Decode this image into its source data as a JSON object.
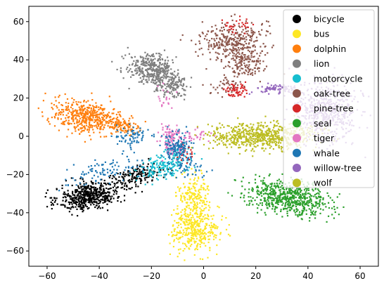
{
  "chart_data": {
    "type": "scatter",
    "title": "",
    "xlabel": "",
    "ylabel": "",
    "xlim": [
      -67,
      67
    ],
    "ylim": [
      -68,
      68
    ],
    "xticks": [
      -60,
      -40,
      -20,
      0,
      20,
      40,
      60
    ],
    "yticks": [
      -60,
      -40,
      -20,
      0,
      20,
      40,
      60
    ],
    "grid": false,
    "legend_position": "upper right",
    "series": [
      {
        "name": "bicycle",
        "color": "#000000",
        "clusters": [
          {
            "cx": -44,
            "cy": -31,
            "sx": 6,
            "sy": 3.5,
            "angle_deg": 15,
            "n": 520
          },
          {
            "cx": -26,
            "cy": -21,
            "sx": 6,
            "sy": 2.5,
            "angle_deg": 25,
            "n": 160
          }
        ]
      },
      {
        "name": "bus",
        "color": "#fde725",
        "clusters": [
          {
            "cx": -3,
            "cy": -48,
            "sx": 4.5,
            "sy": 6,
            "angle_deg": 0,
            "n": 400
          },
          {
            "cx": -4,
            "cy": -30,
            "sx": 3,
            "sy": 5,
            "angle_deg": 0,
            "n": 160
          }
        ]
      },
      {
        "name": "dolphin",
        "color": "#ff7f0e",
        "clusters": [
          {
            "cx": -45,
            "cy": 10,
            "sx": 7,
            "sy": 4,
            "angle_deg": -20,
            "n": 460
          },
          {
            "cx": -32,
            "cy": 6,
            "sx": 4,
            "sy": 2.5,
            "angle_deg": -20,
            "n": 100
          }
        ]
      },
      {
        "name": "lion",
        "color": "#7f7f7f",
        "clusters": [
          {
            "cx": -20,
            "cy": 35,
            "sx": 5,
            "sy": 4,
            "angle_deg": -30,
            "n": 380
          },
          {
            "cx": -12,
            "cy": 26,
            "sx": 3.5,
            "sy": 3,
            "angle_deg": -45,
            "n": 140
          }
        ]
      },
      {
        "name": "motorcycle",
        "color": "#17becf",
        "clusters": [
          {
            "cx": -16,
            "cy": -16,
            "sx": 5,
            "sy": 3,
            "angle_deg": 20,
            "n": 160
          },
          {
            "cx": -10,
            "cy": -8,
            "sx": 2.5,
            "sy": 3,
            "angle_deg": 0,
            "n": 40
          }
        ]
      },
      {
        "name": "oak-tree",
        "color": "#8c564b",
        "clusters": [
          {
            "cx": 11,
            "cy": 50,
            "sx": 6,
            "sy": 5,
            "angle_deg": 0,
            "n": 320
          },
          {
            "cx": 16,
            "cy": 38,
            "sx": 4,
            "sy": 4,
            "angle_deg": 0,
            "n": 140
          },
          {
            "cx": 8,
            "cy": 26,
            "sx": 3,
            "sy": 2.5,
            "angle_deg": 0,
            "n": 40
          }
        ]
      },
      {
        "name": "pine-tree",
        "color": "#d62728",
        "clusters": [
          {
            "cx": 12,
            "cy": 24,
            "sx": 2,
            "sy": 2,
            "angle_deg": 0,
            "n": 60
          },
          {
            "cx": 13,
            "cy": 58,
            "sx": 3,
            "sy": 2,
            "angle_deg": 0,
            "n": 30
          },
          {
            "cx": -7,
            "cy": -8,
            "sx": 1.8,
            "sy": 2.5,
            "angle_deg": 0,
            "n": 30
          }
        ]
      },
      {
        "name": "seal",
        "color": "#2ca02c",
        "clusters": [
          {
            "cx": 33,
            "cy": -32,
            "sx": 8,
            "sy": 4,
            "angle_deg": -15,
            "n": 640
          }
        ]
      },
      {
        "name": "tiger",
        "color": "#e377c2",
        "clusters": [
          {
            "cx": -12,
            "cy": -2,
            "sx": 2.5,
            "sy": 4,
            "angle_deg": 0,
            "n": 100
          },
          {
            "cx": -4,
            "cy": 0,
            "sx": 4,
            "sy": 1.5,
            "angle_deg": 0,
            "n": 40
          },
          {
            "cx": -15,
            "cy": 20,
            "sx": 2,
            "sy": 3,
            "angle_deg": 0,
            "n": 20
          }
        ]
      },
      {
        "name": "whale",
        "color": "#1f77b4",
        "clusters": [
          {
            "cx": -10,
            "cy": -6,
            "sx": 3,
            "sy": 4,
            "angle_deg": 0,
            "n": 140
          },
          {
            "cx": -28,
            "cy": 0,
            "sx": 3.5,
            "sy": 2.5,
            "angle_deg": 0,
            "n": 70
          },
          {
            "cx": -38,
            "cy": -18,
            "sx": 9,
            "sy": 3,
            "angle_deg": 20,
            "n": 100
          },
          {
            "cx": -6,
            "cy": -18,
            "sx": 3,
            "sy": 2.5,
            "angle_deg": 0,
            "n": 40
          }
        ]
      },
      {
        "name": "willow-tree",
        "color": "#9467bd",
        "clusters": [
          {
            "cx": 47,
            "cy": 13,
            "sx": 6,
            "sy": 8,
            "angle_deg": -10,
            "n": 560
          },
          {
            "cx": 28,
            "cy": 25,
            "sx": 4,
            "sy": 1.2,
            "angle_deg": 0,
            "n": 80
          }
        ]
      },
      {
        "name": "wolf",
        "color": "#bcbd22",
        "clusters": [
          {
            "cx": 22,
            "cy": 0,
            "sx": 10,
            "sy": 3.5,
            "angle_deg": 0,
            "n": 640
          }
        ]
      }
    ]
  }
}
